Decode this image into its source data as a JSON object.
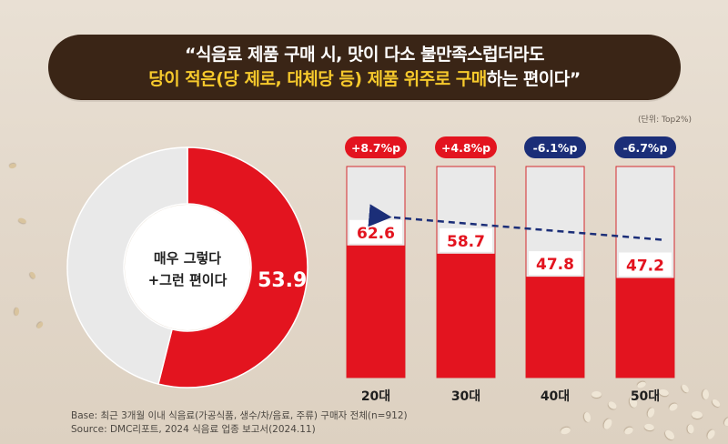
{
  "title": {
    "line1": "“식음료 제품 구매 시, 맛이 다소 불만족스럽더라도",
    "line2_part1": "당이 적은(당 제로, 대체당 등) 제품 위주로 구매",
    "line2_part2": "하는 편이다”"
  },
  "unit_note": "(단위: Top2%)",
  "colors": {
    "red": "#e3141f",
    "gray": "#e9e9e9",
    "navy": "#1b2e78",
    "banner": "#3a2516",
    "highlight": "#f6c92c"
  },
  "chart_data": [
    {
      "type": "pie",
      "variant": "donut",
      "center_label": [
        "매우 그렇다",
        "+그런 편이다"
      ],
      "slices": [
        {
          "label": "매우 그렇다+그런 편이다",
          "value": 53.9,
          "value_label": "53.9",
          "color": "#e3141f"
        },
        {
          "label": "",
          "value": 46.1,
          "value_label": "",
          "color": "#e9e9e9"
        }
      ]
    },
    {
      "type": "bar",
      "stacked_to": 100,
      "categories": [
        "20대",
        "30대",
        "40대",
        "50대"
      ],
      "values": [
        62.6,
        58.7,
        47.8,
        47.2
      ],
      "value_labels": [
        "62.6",
        "58.7",
        "47.8",
        "47.2"
      ],
      "diffs": [
        "+8.7%p",
        "+4.8%p",
        "-6.1%p",
        "-6.7%p"
      ],
      "diff_colors": [
        "#e3141f",
        "#e3141f",
        "#1b2e78",
        "#1b2e78"
      ],
      "ylim": [
        0,
        100
      ],
      "trend_arrow": {
        "from": "50대",
        "to": "20대",
        "style": "dashed",
        "color": "#1b2e78"
      }
    }
  ],
  "footer": {
    "base": "Base: 최근 3개월 이내 식음료(가공식품, 생수/차/음료, 주류) 구매자 전체(n=912)",
    "source": "Source: DMC리포트, 2024 식음료 업종 보고서(2024.11)"
  }
}
